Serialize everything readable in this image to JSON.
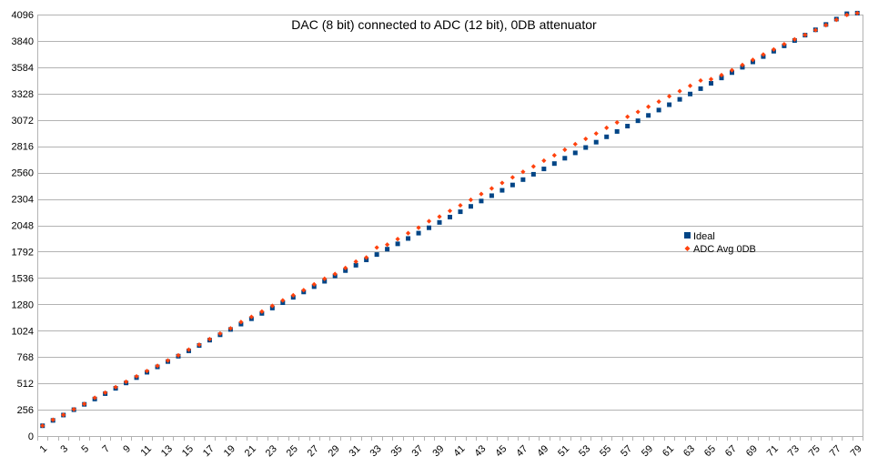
{
  "chart_data": {
    "type": "scatter",
    "title": "DAC (8 bit) connected to ADC (12 bit), 0DB attenuator",
    "xlabel": "",
    "ylabel": "",
    "xlim": [
      1,
      79
    ],
    "ylim": [
      0,
      4096
    ],
    "x_ticks": [
      1,
      3,
      5,
      7,
      9,
      11,
      13,
      15,
      17,
      19,
      21,
      23,
      25,
      27,
      29,
      31,
      33,
      35,
      37,
      39,
      41,
      43,
      45,
      47,
      49,
      51,
      53,
      55,
      57,
      59,
      61,
      63,
      65,
      67,
      69,
      71,
      73,
      75,
      77,
      79
    ],
    "y_ticks": [
      0,
      256,
      512,
      768,
      1024,
      1280,
      1536,
      1792,
      2048,
      2304,
      2560,
      2816,
      3072,
      3328,
      3584,
      3840,
      4096
    ],
    "grid": "horizontal",
    "legend_position": "right",
    "x": [
      1,
      2,
      3,
      4,
      5,
      6,
      7,
      8,
      9,
      10,
      11,
      12,
      13,
      14,
      15,
      16,
      17,
      18,
      19,
      20,
      21,
      22,
      23,
      24,
      25,
      26,
      27,
      28,
      29,
      30,
      31,
      32,
      33,
      34,
      35,
      36,
      37,
      38,
      39,
      40,
      41,
      42,
      43,
      44,
      45,
      46,
      47,
      48,
      49,
      50,
      51,
      52,
      53,
      54,
      55,
      56,
      57,
      58,
      59,
      60,
      61,
      62,
      63,
      64,
      65,
      66,
      67,
      68,
      69,
      70,
      71,
      72,
      73,
      74,
      75,
      76,
      77,
      78,
      79
    ],
    "series": [
      {
        "name": "Ideal",
        "color": "#004586",
        "marker": "square",
        "values": [
          100,
          152,
          204,
          256,
          308,
          360,
          412,
          464,
          516,
          568,
          620,
          672,
          724,
          776,
          828,
          880,
          932,
          984,
          1036,
          1088,
          1140,
          1192,
          1244,
          1296,
          1348,
          1400,
          1452,
          1504,
          1556,
          1608,
          1660,
          1712,
          1764,
          1816,
          1868,
          1920,
          1972,
          2024,
          2076,
          2128,
          2180,
          2232,
          2284,
          2336,
          2388,
          2440,
          2492,
          2544,
          2596,
          2648,
          2700,
          2752,
          2804,
          2856,
          2908,
          2960,
          3012,
          3064,
          3116,
          3168,
          3220,
          3272,
          3324,
          3376,
          3428,
          3480,
          3532,
          3584,
          3636,
          3688,
          3740,
          3792,
          3844,
          3896,
          3948,
          4000,
          4052,
          4104,
          4110
        ]
      },
      {
        "name": "ADC Avg 0DB",
        "color": "#ff420e",
        "marker": "diamond",
        "values": [
          100,
          158,
          206,
          260,
          312,
          372,
          422,
          475,
          528,
          580,
          632,
          682,
          734,
          784,
          840,
          888,
          942,
          996,
          1046,
          1108,
          1158,
          1210,
          1265,
          1318,
          1368,
          1418,
          1474,
          1528,
          1575,
          1633,
          1695,
          1735,
          1832,
          1860,
          1914,
          1972,
          2025,
          2088,
          2132,
          2188,
          2242,
          2296,
          2352,
          2406,
          2460,
          2514,
          2568,
          2620,
          2676,
          2728,
          2782,
          2837,
          2888,
          2940,
          2996,
          3048,
          3103,
          3150,
          3200,
          3250,
          3302,
          3352,
          3404,
          3455,
          3468,
          3508,
          3555,
          3606,
          3656,
          3708,
          3757,
          3808,
          3855,
          3898,
          3945,
          3993,
          4045,
          4093,
          4110
        ]
      }
    ]
  }
}
